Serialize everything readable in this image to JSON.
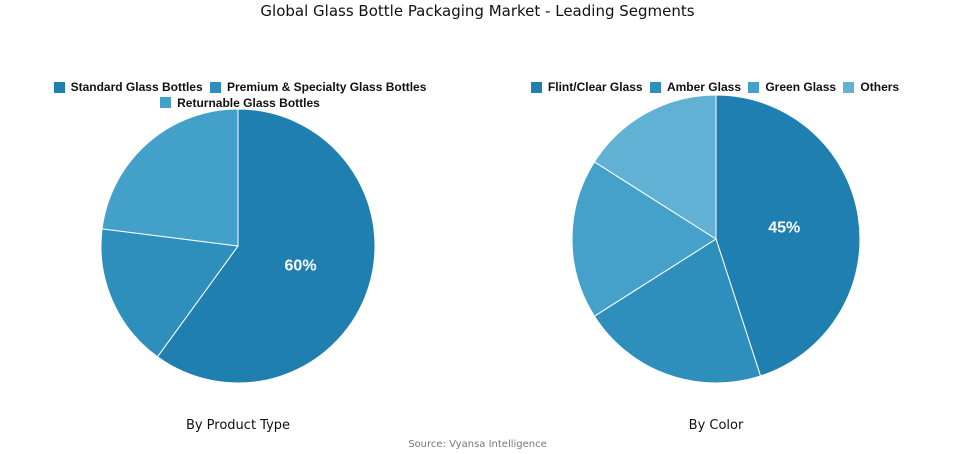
{
  "title": "Global Glass Bottle Packaging Market - Leading Segments",
  "source": "Source: Vyansa Intelligence",
  "chart_data": [
    {
      "type": "pie",
      "subtitle": "By Product Type",
      "labels": [
        "Standard Glass Bottles",
        "Premium & Specialty Glass Bottles",
        "Returnable Glass Bottles"
      ],
      "values": [
        60,
        17,
        23
      ],
      "colors": [
        "#1f7fb0",
        "#2e8fbd",
        "#43a0c8"
      ],
      "data_labels": [
        "60%",
        "",
        ""
      ],
      "legend_position": "top"
    },
    {
      "type": "pie",
      "subtitle": "By Color",
      "labels": [
        "Flint/Clear Glass",
        "Amber Glass",
        "Green Glass",
        "Others"
      ],
      "values": [
        45,
        21,
        18,
        16
      ],
      "colors": [
        "#1f7fb0",
        "#2e8fbd",
        "#45a1c9",
        "#60b1d3"
      ],
      "data_labels": [
        "45%",
        "",
        "",
        ""
      ],
      "legend_position": "top"
    }
  ]
}
